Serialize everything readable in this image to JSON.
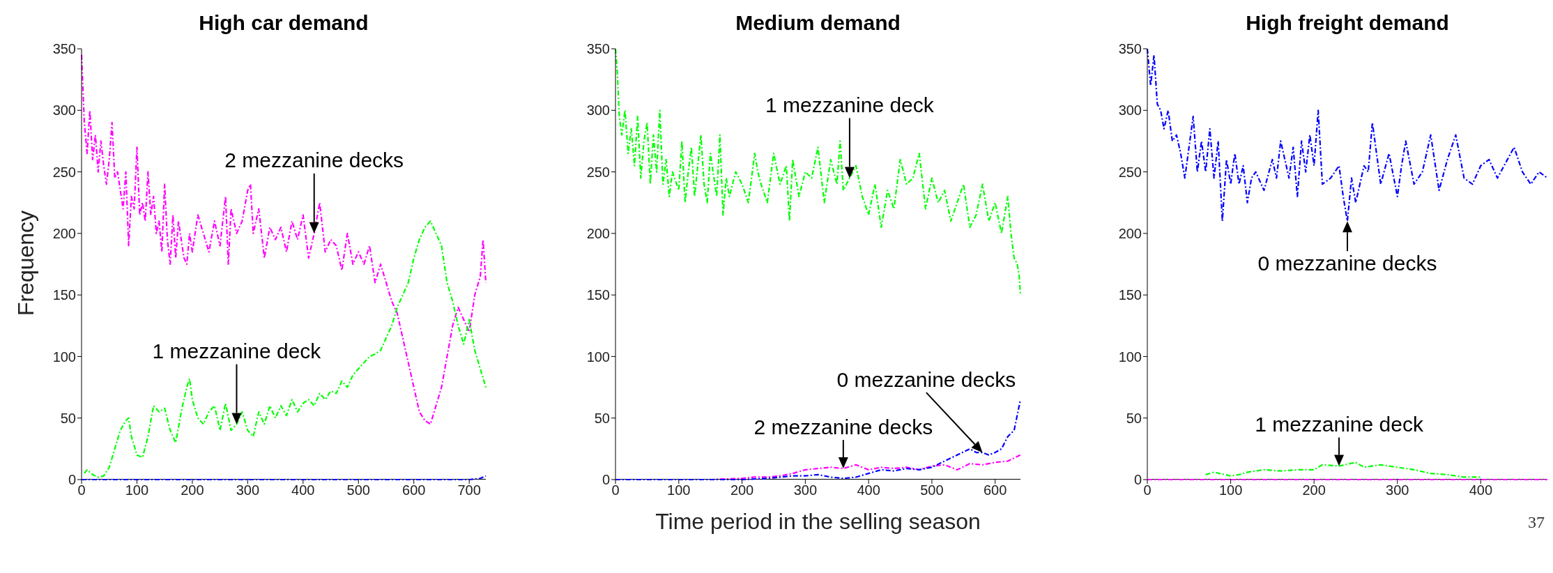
{
  "chart_data": [
    {
      "type": "line",
      "title": "High car demand",
      "ylabel": "Frequency",
      "xlim": [
        0,
        730
      ],
      "xticks": [
        0,
        100,
        200,
        300,
        400,
        500,
        600,
        700
      ],
      "ylim": [
        0,
        350
      ],
      "yticks": [
        0,
        50,
        100,
        150,
        200,
        250,
        300,
        350
      ],
      "line_style": "dashed",
      "annotations": [
        {
          "text": "1 mezzanine deck",
          "x": 280,
          "y": 45
        },
        {
          "text": "2 mezzanine decks",
          "x": 420,
          "y": 200
        }
      ],
      "series": [
        {
          "color": "#ff00ff",
          "x": [
            0,
            5,
            10,
            15,
            20,
            25,
            30,
            35,
            40,
            45,
            50,
            55,
            60,
            65,
            70,
            75,
            80,
            85,
            90,
            95,
            100,
            105,
            110,
            115,
            120,
            125,
            130,
            135,
            140,
            145,
            150,
            155,
            160,
            165,
            170,
            175,
            180,
            185,
            190,
            195,
            200,
            210,
            220,
            230,
            240,
            250,
            260,
            265,
            270,
            280,
            290,
            300,
            305,
            310,
            320,
            330,
            340,
            350,
            360,
            370,
            380,
            390,
            400,
            410,
            420,
            430,
            440,
            450,
            460,
            470,
            480,
            490,
            500,
            510,
            520,
            530,
            540,
            550,
            560,
            570,
            580,
            590,
            600,
            610,
            620,
            630,
            640,
            650,
            660,
            670,
            680,
            690,
            700,
            710,
            720,
            725,
            730
          ],
          "values": [
            345,
            290,
            265,
            300,
            260,
            280,
            250,
            275,
            255,
            240,
            260,
            290,
            245,
            250,
            235,
            220,
            250,
            190,
            230,
            220,
            270,
            215,
            225,
            210,
            250,
            215,
            230,
            200,
            210,
            185,
            240,
            195,
            175,
            215,
            180,
            210,
            195,
            180,
            175,
            200,
            185,
            215,
            200,
            185,
            210,
            190,
            230,
            175,
            220,
            200,
            210,
            235,
            240,
            200,
            220,
            180,
            205,
            195,
            205,
            185,
            210,
            195,
            215,
            180,
            200,
            225,
            185,
            195,
            190,
            170,
            200,
            175,
            185,
            175,
            190,
            160,
            175,
            160,
            145,
            135,
            115,
            95,
            75,
            55,
            48,
            45,
            60,
            75,
            100,
            125,
            140,
            130,
            120,
            150,
            165,
            195,
            160
          ]
        },
        {
          "color": "#00ff00",
          "x": [
            5,
            10,
            20,
            30,
            40,
            50,
            60,
            70,
            80,
            85,
            90,
            100,
            110,
            120,
            130,
            140,
            150,
            160,
            170,
            180,
            190,
            195,
            200,
            210,
            220,
            230,
            240,
            250,
            260,
            270,
            280,
            290,
            300,
            310,
            320,
            330,
            340,
            350,
            360,
            370,
            380,
            390,
            400,
            410,
            420,
            430,
            440,
            450,
            460,
            470,
            480,
            490,
            500,
            510,
            520,
            530,
            540,
            550,
            560,
            570,
            580,
            590,
            600,
            610,
            620,
            630,
            640,
            650,
            660,
            670,
            680,
            690,
            700,
            710,
            720,
            730
          ],
          "values": [
            5,
            8,
            4,
            2,
            3,
            10,
            25,
            40,
            48,
            50,
            35,
            20,
            18,
            35,
            60,
            55,
            58,
            40,
            30,
            55,
            75,
            82,
            65,
            50,
            45,
            55,
            60,
            40,
            62,
            40,
            45,
            55,
            40,
            35,
            55,
            45,
            60,
            50,
            60,
            52,
            65,
            55,
            62,
            65,
            60,
            70,
            65,
            72,
            70,
            80,
            75,
            85,
            90,
            95,
            100,
            102,
            105,
            115,
            125,
            140,
            150,
            160,
            180,
            195,
            205,
            210,
            200,
            190,
            160,
            145,
            125,
            110,
            130,
            105,
            90,
            75
          ]
        },
        {
          "color": "#0000ff",
          "x": [
            0,
            100,
            200,
            300,
            400,
            500,
            600,
            700,
            720,
            730
          ],
          "values": [
            0,
            0,
            0,
            0,
            0,
            0,
            0,
            0,
            1,
            3
          ]
        }
      ]
    },
    {
      "type": "line",
      "title": "Medium demand",
      "xlabel": "Time period in the selling season",
      "xlim": [
        0,
        640
      ],
      "xticks": [
        0,
        100,
        200,
        300,
        400,
        500,
        600
      ],
      "ylim": [
        0,
        350
      ],
      "yticks": [
        0,
        50,
        100,
        150,
        200,
        250,
        300,
        350
      ],
      "line_style": "dashed",
      "annotations": [
        {
          "text": "0 mezzanine decks",
          "x": 580,
          "y": 22
        },
        {
          "text": "2 mezzanine decks",
          "x": 360,
          "y": 9
        },
        {
          "text": "1 mezzanine deck",
          "x": 370,
          "y": 245
        }
      ],
      "series": [
        {
          "color": "#00ff00",
          "x": [
            0,
            3,
            6,
            10,
            15,
            20,
            25,
            30,
            35,
            40,
            45,
            50,
            55,
            60,
            65,
            70,
            75,
            80,
            85,
            90,
            100,
            105,
            110,
            115,
            120,
            125,
            135,
            140,
            145,
            150,
            160,
            165,
            170,
            175,
            180,
            190,
            200,
            210,
            220,
            225,
            230,
            240,
            250,
            260,
            270,
            275,
            280,
            290,
            300,
            310,
            320,
            330,
            340,
            350,
            355,
            360,
            370,
            380,
            390,
            400,
            410,
            420,
            430,
            440,
            450,
            460,
            470,
            480,
            490,
            500,
            510,
            520,
            530,
            540,
            550,
            560,
            570,
            580,
            590,
            600,
            610,
            620,
            625,
            630,
            635,
            638,
            640
          ],
          "values": [
            350,
            330,
            295,
            280,
            300,
            265,
            285,
            255,
            295,
            245,
            275,
            290,
            240,
            280,
            250,
            300,
            240,
            260,
            230,
            250,
            235,
            275,
            225,
            250,
            270,
            230,
            280,
            240,
            225,
            265,
            230,
            280,
            215,
            245,
            230,
            250,
            240,
            225,
            265,
            250,
            240,
            225,
            265,
            240,
            255,
            210,
            260,
            230,
            250,
            245,
            270,
            225,
            260,
            240,
            275,
            235,
            245,
            255,
            230,
            215,
            240,
            205,
            235,
            220,
            260,
            240,
            245,
            265,
            220,
            245,
            225,
            235,
            210,
            225,
            240,
            205,
            215,
            240,
            210,
            225,
            200,
            230,
            200,
            180,
            175,
            165,
            150
          ]
        },
        {
          "color": "#ff00ff",
          "x": [
            0,
            100,
            150,
            200,
            220,
            240,
            260,
            280,
            300,
            320,
            340,
            360,
            380,
            400,
            420,
            440,
            460,
            480,
            500,
            520,
            540,
            560,
            580,
            600,
            620,
            640
          ],
          "values": [
            0,
            0,
            0,
            1,
            2,
            2,
            3,
            5,
            8,
            9,
            10,
            9,
            12,
            8,
            10,
            9,
            10,
            8,
            11,
            12,
            8,
            13,
            12,
            14,
            15,
            20
          ]
        },
        {
          "color": "#0000ff",
          "x": [
            0,
            200,
            240,
            260,
            280,
            300,
            320,
            340,
            360,
            380,
            400,
            420,
            440,
            460,
            480,
            500,
            520,
            540,
            560,
            570,
            580,
            590,
            600,
            610,
            620,
            630,
            640
          ],
          "values": [
            0,
            0,
            1,
            2,
            3,
            3,
            4,
            2,
            1,
            2,
            5,
            8,
            7,
            9,
            8,
            10,
            15,
            20,
            25,
            22,
            22,
            20,
            22,
            25,
            35,
            40,
            65
          ]
        }
      ]
    },
    {
      "type": "line",
      "title": "High freight demand",
      "xlim": [
        0,
        480
      ],
      "xticks": [
        0,
        100,
        200,
        300,
        400
      ],
      "ylim": [
        0,
        350
      ],
      "yticks": [
        0,
        50,
        100,
        150,
        200,
        250,
        300,
        350
      ],
      "line_style": "dashed",
      "annotations": [
        {
          "text": "0 mezzanine decks",
          "x": 240,
          "y": 210
        },
        {
          "text": "1 mezzanine deck",
          "x": 230,
          "y": 11
        },
        "37"
      ],
      "series": [
        {
          "color": "#0000ff",
          "x": [
            0,
            4,
            8,
            12,
            16,
            20,
            25,
            30,
            35,
            40,
            45,
            50,
            55,
            60,
            65,
            70,
            75,
            80,
            85,
            90,
            95,
            100,
            105,
            110,
            115,
            120,
            125,
            130,
            140,
            150,
            155,
            160,
            170,
            175,
            180,
            185,
            190,
            195,
            200,
            205,
            210,
            220,
            230,
            235,
            240,
            245,
            250,
            260,
            265,
            270,
            280,
            290,
            300,
            305,
            310,
            320,
            330,
            340,
            350,
            360,
            370,
            380,
            390,
            400,
            410,
            420,
            440,
            450,
            460,
            470,
            480
          ],
          "values": [
            350,
            320,
            345,
            305,
            300,
            285,
            300,
            275,
            280,
            265,
            245,
            270,
            295,
            250,
            275,
            250,
            285,
            245,
            275,
            210,
            260,
            240,
            265,
            240,
            255,
            225,
            245,
            250,
            235,
            260,
            245,
            275,
            245,
            270,
            230,
            275,
            250,
            280,
            255,
            300,
            240,
            245,
            255,
            230,
            210,
            245,
            225,
            255,
            250,
            290,
            240,
            265,
            230,
            255,
            275,
            240,
            250,
            280,
            235,
            260,
            280,
            245,
            240,
            255,
            260,
            245,
            270,
            250,
            240,
            250,
            245
          ]
        },
        {
          "color": "#00ff00",
          "x": [
            70,
            80,
            100,
            110,
            120,
            140,
            160,
            180,
            200,
            210,
            230,
            250,
            260,
            280,
            300,
            320,
            340,
            360,
            380,
            400
          ],
          "values": [
            4,
            6,
            3,
            4,
            6,
            8,
            7,
            8,
            8,
            12,
            11,
            14,
            10,
            12,
            10,
            8,
            5,
            4,
            2,
            2
          ]
        },
        {
          "color": "#ff00ff",
          "x": [
            0,
            480
          ],
          "values": [
            0,
            0
          ]
        }
      ]
    }
  ]
}
